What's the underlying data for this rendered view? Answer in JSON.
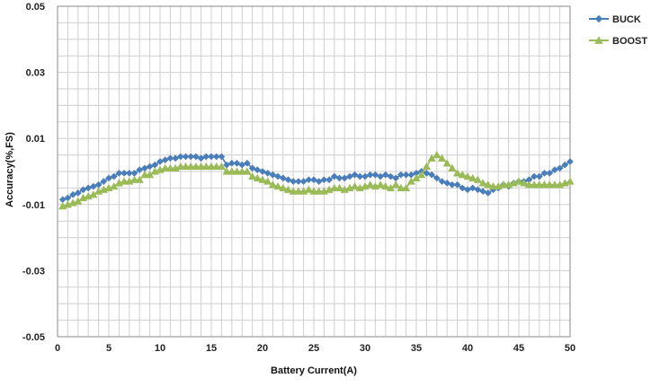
{
  "chart_data": {
    "type": "line",
    "title": "",
    "xlabel": "Battery Current(A)",
    "ylabel": "Accuracy(%,FS)",
    "xlim": [
      0,
      50
    ],
    "ylim": [
      -0.05,
      0.05
    ],
    "x_ticks": [
      "0",
      "5",
      "10",
      "15",
      "20",
      "25",
      "30",
      "35",
      "40",
      "45",
      "50"
    ],
    "y_ticks": [
      "-0.05",
      "-0.03",
      "-0.01",
      "0.01",
      "0.03",
      "0.05"
    ],
    "grid": true,
    "legend_position": "top-right",
    "series": [
      {
        "name": "BUCK",
        "color": "#4a7ebb",
        "marker": "diamond",
        "x": [
          0.5,
          1,
          1.5,
          2,
          2.5,
          3,
          3.5,
          4,
          4.5,
          5,
          5.5,
          6,
          6.5,
          7,
          7.5,
          8,
          8.5,
          9,
          9.5,
          10,
          10.5,
          11,
          11.5,
          12,
          12.5,
          13,
          13.5,
          14,
          14.5,
          15,
          15.5,
          16,
          16.5,
          17,
          17.5,
          18,
          18.5,
          19,
          19.5,
          20,
          20.5,
          21,
          21.5,
          22,
          22.5,
          23,
          23.5,
          24,
          24.5,
          25,
          25.5,
          26,
          26.5,
          27,
          27.5,
          28,
          28.5,
          29,
          29.5,
          30,
          30.5,
          31,
          31.5,
          32,
          32.5,
          33,
          33.5,
          34,
          34.5,
          35,
          35.5,
          36,
          36.5,
          37,
          37.5,
          38,
          38.5,
          39,
          39.5,
          40,
          40.5,
          41,
          41.5,
          42,
          42.5,
          43,
          43.5,
          44,
          44.5,
          45,
          45.5,
          46,
          46.5,
          47,
          47.5,
          48,
          48.5,
          49,
          49.5,
          50
        ],
        "y": [
          -0.0085,
          -0.008,
          -0.007,
          -0.0065,
          -0.0055,
          -0.005,
          -0.0045,
          -0.004,
          -0.003,
          -0.002,
          -0.0015,
          -0.0005,
          -0.0005,
          -0.0005,
          -0.0005,
          0.0005,
          0.001,
          0.0015,
          0.002,
          0.003,
          0.0035,
          0.004,
          0.004,
          0.0045,
          0.0045,
          0.0045,
          0.0045,
          0.004,
          0.0045,
          0.0045,
          0.0045,
          0.0045,
          0.002,
          0.0025,
          0.0025,
          0.002,
          0.0025,
          0.001,
          0.0005,
          0.0,
          -0.0005,
          -0.001,
          -0.0015,
          -0.002,
          -0.0025,
          -0.003,
          -0.003,
          -0.003,
          -0.0025,
          -0.0025,
          -0.003,
          -0.0025,
          -0.0025,
          -0.0015,
          -0.002,
          -0.002,
          -0.0015,
          -0.001,
          -0.0015,
          -0.0015,
          -0.001,
          -0.001,
          -0.0015,
          -0.001,
          -0.0015,
          -0.002,
          -0.001,
          -0.001,
          -0.001,
          -0.0005,
          0.0,
          -0.0005,
          -0.001,
          -0.002,
          -0.003,
          -0.0035,
          -0.004,
          -0.004,
          -0.005,
          -0.0055,
          -0.005,
          -0.0055,
          -0.006,
          -0.0065,
          -0.0055,
          -0.005,
          -0.004,
          -0.0045,
          -0.0035,
          -0.003,
          -0.003,
          -0.0025,
          -0.0015,
          -0.0015,
          -0.0005,
          -0.0005,
          0.0005,
          0.001,
          0.002,
          0.003
        ]
      },
      {
        "name": "BOOST",
        "color": "#9bbb59",
        "marker": "triangle",
        "x": [
          0.5,
          1,
          1.5,
          2,
          2.5,
          3,
          3.5,
          4,
          4.5,
          5,
          5.5,
          6,
          6.5,
          7,
          7.5,
          8,
          8.5,
          9,
          9.5,
          10,
          10.5,
          11,
          11.5,
          12,
          12.5,
          13,
          13.5,
          14,
          14.5,
          15,
          15.5,
          16,
          16.5,
          17,
          17.5,
          18,
          18.5,
          19,
          19.5,
          20,
          20.5,
          21,
          21.5,
          22,
          22.5,
          23,
          23.5,
          24,
          24.5,
          25,
          25.5,
          26,
          26.5,
          27,
          27.5,
          28,
          28.5,
          29,
          29.5,
          30,
          30.5,
          31,
          31.5,
          32,
          32.5,
          33,
          33.5,
          34,
          34.5,
          35,
          35.5,
          36,
          36.5,
          37,
          37.5,
          38,
          38.5,
          39,
          39.5,
          40,
          40.5,
          41,
          41.5,
          42,
          42.5,
          43,
          43.5,
          44,
          44.5,
          45,
          45.5,
          46,
          46.5,
          47,
          47.5,
          48,
          48.5,
          49,
          49.5,
          50
        ],
        "y": [
          -0.0105,
          -0.01,
          -0.0095,
          -0.009,
          -0.008,
          -0.0075,
          -0.007,
          -0.006,
          -0.0055,
          -0.005,
          -0.0045,
          -0.0035,
          -0.003,
          -0.003,
          -0.0025,
          -0.0025,
          -0.001,
          -0.001,
          0.0,
          0.0005,
          0.001,
          0.001,
          0.001,
          0.0015,
          0.0015,
          0.0015,
          0.0015,
          0.0015,
          0.0015,
          0.0015,
          0.0015,
          0.0015,
          0.0,
          0.0,
          0.0,
          0.0,
          0.0,
          -0.0015,
          -0.002,
          -0.0025,
          -0.003,
          -0.004,
          -0.0045,
          -0.005,
          -0.0055,
          -0.006,
          -0.006,
          -0.006,
          -0.0055,
          -0.006,
          -0.006,
          -0.006,
          -0.0055,
          -0.005,
          -0.005,
          -0.0055,
          -0.005,
          -0.0045,
          -0.005,
          -0.0045,
          -0.004,
          -0.0045,
          -0.004,
          -0.0045,
          -0.005,
          -0.004,
          -0.005,
          -0.005,
          -0.003,
          -0.002,
          -0.001,
          0.0015,
          0.004,
          0.005,
          0.004,
          0.0025,
          0.001,
          -0.0005,
          -0.001,
          -0.0015,
          -0.002,
          -0.0025,
          -0.0035,
          -0.004,
          -0.0045,
          -0.0045,
          -0.004,
          -0.004,
          -0.0035,
          -0.003,
          -0.0035,
          -0.004,
          -0.004,
          -0.004,
          -0.004,
          -0.004,
          -0.004,
          -0.004,
          -0.0035,
          -0.003
        ]
      }
    ]
  }
}
